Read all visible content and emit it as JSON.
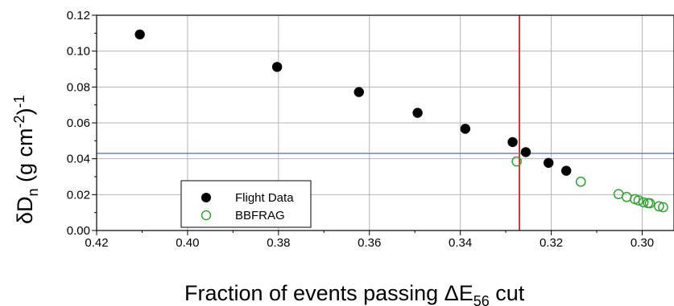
{
  "chart_data": {
    "type": "scatter",
    "xlabel": "Fraction of events passing ΔE56 cut",
    "xlabel_parts": {
      "main": "Fraction of events passing ΔE",
      "sub": "56",
      "tail": " cut"
    },
    "ylabel": "δDn (g cm-2)-1",
    "ylabel_parts": {
      "delta": "δD",
      "sub": "n",
      "unit": " (g cm",
      "sup1": "-2",
      "close": ")",
      "sup2": "-1"
    },
    "xlim": [
      0.42,
      0.293
    ],
    "x_reversed": true,
    "ylim": [
      0.0,
      0.12
    ],
    "x_ticks": [
      0.42,
      0.4,
      0.38,
      0.36,
      0.34,
      0.32,
      0.3
    ],
    "x_tick_labels": [
      "0.42",
      "0.40",
      "0.38",
      "0.36",
      "0.34",
      "0.32",
      "0.30"
    ],
    "y_ticks": [
      0.0,
      0.02,
      0.04,
      0.06,
      0.08,
      0.1,
      0.12
    ],
    "y_tick_labels": [
      "0.00",
      "0.02",
      "0.04",
      "0.06",
      "0.08",
      "0.10",
      "0.12"
    ],
    "grid": true,
    "legend_position": "bottom-left",
    "series": [
      {
        "name": "Flight Data",
        "marker": "filled-circle",
        "color": "#000000",
        "x": [
          0.4105,
          0.3803,
          0.3623,
          0.3494,
          0.3389,
          0.3285,
          0.3256,
          0.3206,
          0.3167
        ],
        "y": [
          0.1093,
          0.0912,
          0.0772,
          0.0656,
          0.0567,
          0.0493,
          0.0437,
          0.0377,
          0.0333
        ]
      },
      {
        "name": "BBFRAG",
        "marker": "open-circle",
        "color": "#33a333",
        "x": [
          0.3276,
          0.3135,
          0.3052,
          0.3034,
          0.3016,
          0.3008,
          0.2997,
          0.2987,
          0.2983,
          0.2963,
          0.2954
        ],
        "y": [
          0.0385,
          0.0272,
          0.0203,
          0.0187,
          0.0175,
          0.0168,
          0.0157,
          0.0153,
          0.0152,
          0.0135,
          0.013
        ]
      }
    ],
    "reference_lines": [
      {
        "orientation": "vertical",
        "x": 0.327,
        "color": "#e8161b"
      },
      {
        "orientation": "horizontal",
        "y": 0.043,
        "color": "#5567c8"
      }
    ]
  }
}
